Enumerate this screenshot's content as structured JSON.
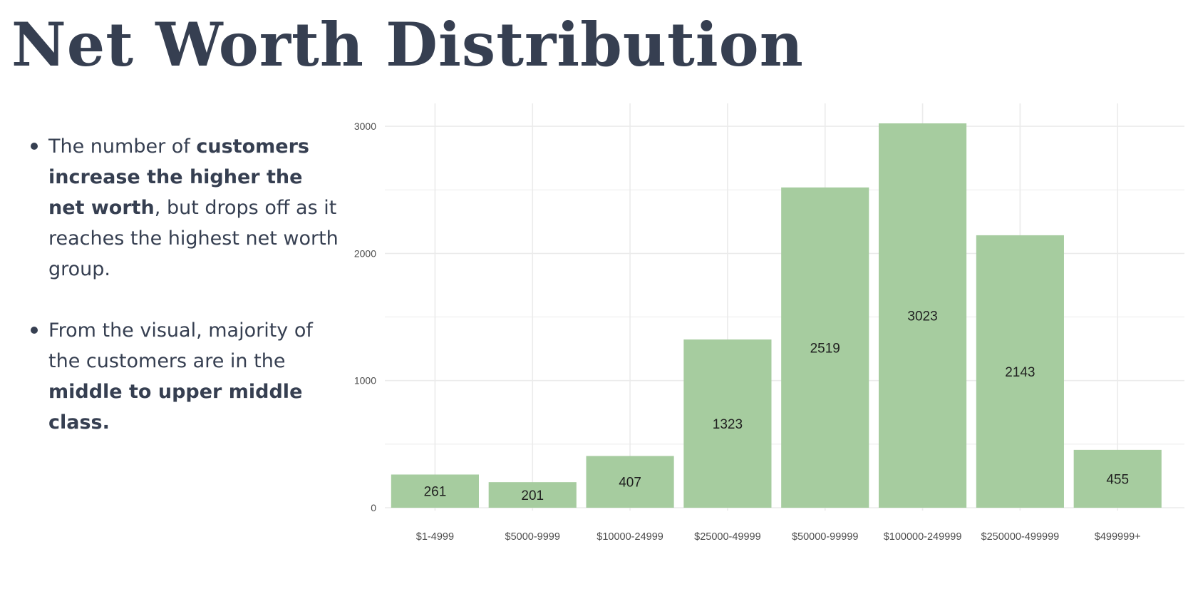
{
  "title": "Net Worth Distribution",
  "bullets": [
    {
      "segments": [
        {
          "text": "The number of ",
          "bold": false
        },
        {
          "text": "customers increase the higher the net worth",
          "bold": true
        },
        {
          "text": ", but drops off as it reaches the highest net worth group.",
          "bold": false
        }
      ]
    },
    {
      "segments": [
        {
          "text": "From the visual, majority of the customers are in the ",
          "bold": false
        },
        {
          "text": "middle to upper middle class.",
          "bold": true
        }
      ]
    }
  ],
  "colors": {
    "text": "#363f51",
    "bar": "#a6cc9f",
    "grid": "#ebebeb",
    "axis_text": "#4d4d4d"
  },
  "chart_data": {
    "type": "bar",
    "categories": [
      "$1-4999",
      "$5000-9999",
      "$10000-24999",
      "$25000-49999",
      "$50000-99999",
      "$100000-249999",
      "$250000-499999",
      "$499999+"
    ],
    "values": [
      261,
      201,
      407,
      1323,
      2519,
      3023,
      2143,
      455
    ],
    "data_labels": [
      "261",
      "201",
      "407",
      "1323",
      "2519",
      "3023",
      "2143",
      "455"
    ],
    "y_ticks": [
      0,
      1000,
      2000,
      3000
    ],
    "ylim": [
      0,
      3200
    ],
    "grid": true,
    "xlabel": "",
    "ylabel": ""
  }
}
